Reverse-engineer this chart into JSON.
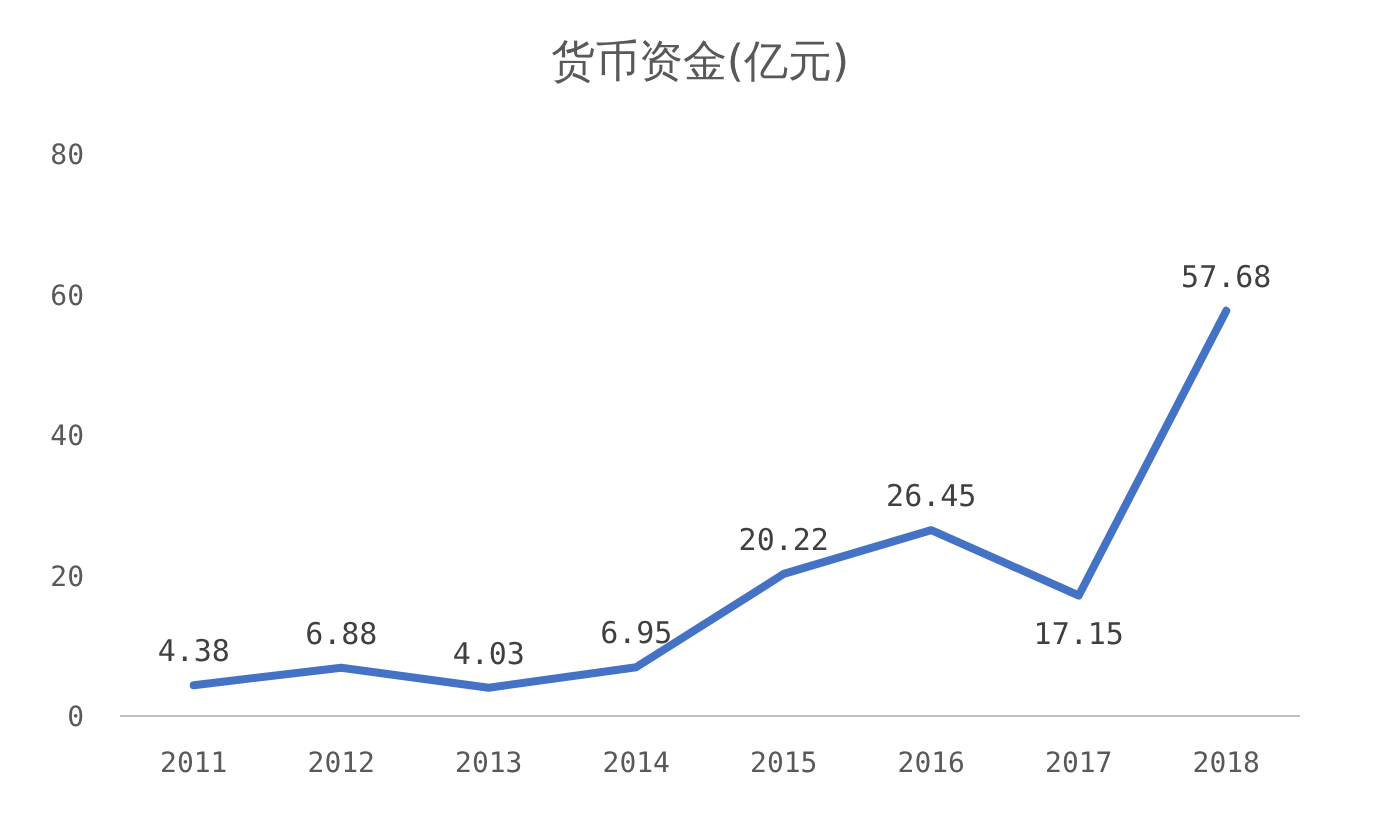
{
  "chart_data": {
    "type": "line",
    "title": "货币资金(亿元)",
    "categories": [
      "2011",
      "2012",
      "2013",
      "2014",
      "2015",
      "2016",
      "2017",
      "2018"
    ],
    "series": [
      {
        "color": "#4472c4",
        "values": [
          4.38,
          6.88,
          4.03,
          6.95,
          20.22,
          26.45,
          17.15,
          57.68
        ]
      }
    ],
    "ylim": [
      0,
      80
    ],
    "yticks": [
      0,
      20,
      40,
      60,
      80
    ],
    "grid": false,
    "data_labels": true,
    "marker": "none",
    "line_style": "solid"
  }
}
